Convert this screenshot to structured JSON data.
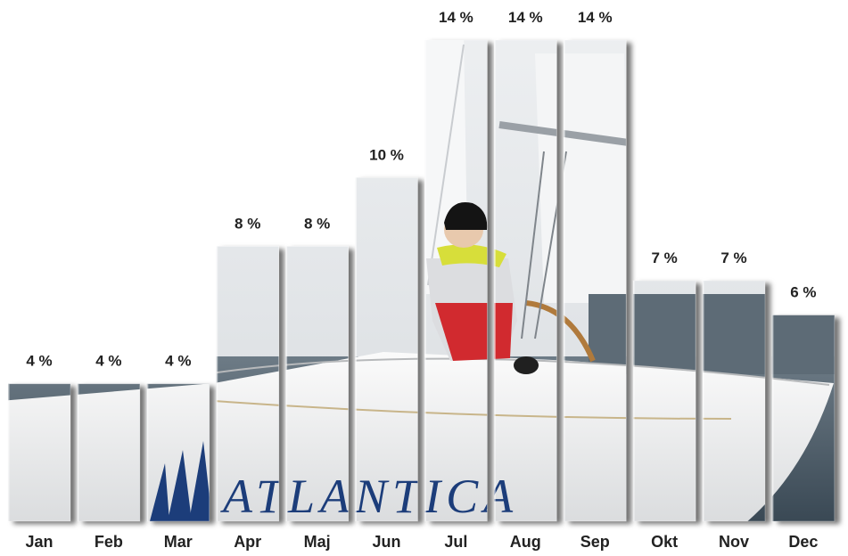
{
  "chart_data": {
    "type": "bar",
    "title": "",
    "xlabel": "",
    "ylabel": "",
    "ylim": [
      0,
      14
    ],
    "grid": false,
    "legend": "none",
    "categories": [
      "Jan",
      "Feb",
      "Mar",
      "Apr",
      "Maj",
      "Jun",
      "Jul",
      "Aug",
      "Sep",
      "Okt",
      "Nov",
      "Dec"
    ],
    "values": [
      4,
      4,
      4,
      8,
      8,
      10,
      14,
      14,
      14,
      7,
      7,
      6
    ],
    "value_labels": [
      "4 %",
      "4 %",
      "4 %",
      "8 %",
      "8 %",
      "10 %",
      "14 %",
      "14 %",
      "14 %",
      "7 %",
      "7 %",
      "6 %"
    ],
    "bar_fill": "photo of a white sailboat on water (ATLANTICA)",
    "colors": {
      "label_text": "#222222",
      "sky": "#e6e9ec",
      "water": "#3b4c5a",
      "hull": "#f1f2f2",
      "logo_blue": "#1c3d7a",
      "jacket_red": "#d12a2f",
      "jacket_yellow": "#d7de3a"
    }
  }
}
